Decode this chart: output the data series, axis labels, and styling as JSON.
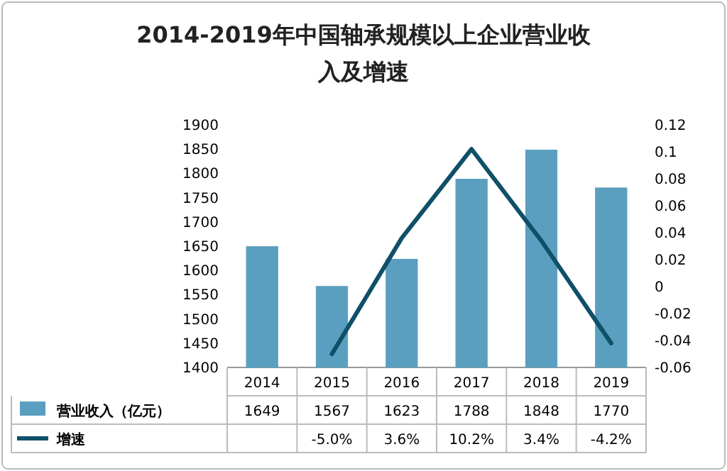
{
  "chart_data": {
    "type": "bar",
    "title": "2014-2019年中国轴承规模以上企业营业收入及增速",
    "categories": [
      "2014",
      "2015",
      "2016",
      "2017",
      "2018",
      "2019"
    ],
    "series": [
      {
        "name": "营业收入（亿元）",
        "color": "#5a9fbf",
        "values": [
          1649,
          1567,
          1623,
          1788,
          1848,
          1770
        ],
        "value_labels": [
          "1649",
          "1567",
          "1623",
          "1788",
          "1848",
          "1770"
        ]
      },
      {
        "name": "增速",
        "type": "line",
        "axis": "y2",
        "color": "#0f5068",
        "values": [
          null,
          -0.05,
          0.036,
          0.102,
          0.034,
          -0.042
        ],
        "value_labels": [
          null,
          "-5.0%",
          "3.6%",
          "10.2%",
          "3.4%",
          "-4.2%"
        ]
      }
    ],
    "ylim": [
      1400,
      1900
    ],
    "yticks": [
      1400,
      1450,
      1500,
      1550,
      1600,
      1650,
      1700,
      1750,
      1800,
      1850,
      1900
    ],
    "y2lim": [
      -0.06,
      0.12
    ],
    "y2ticks": [
      -0.06,
      -0.04,
      -0.02,
      0,
      0.02,
      0.04,
      0.06,
      0.08,
      0.1,
      0.12
    ],
    "legend": "bottom"
  }
}
